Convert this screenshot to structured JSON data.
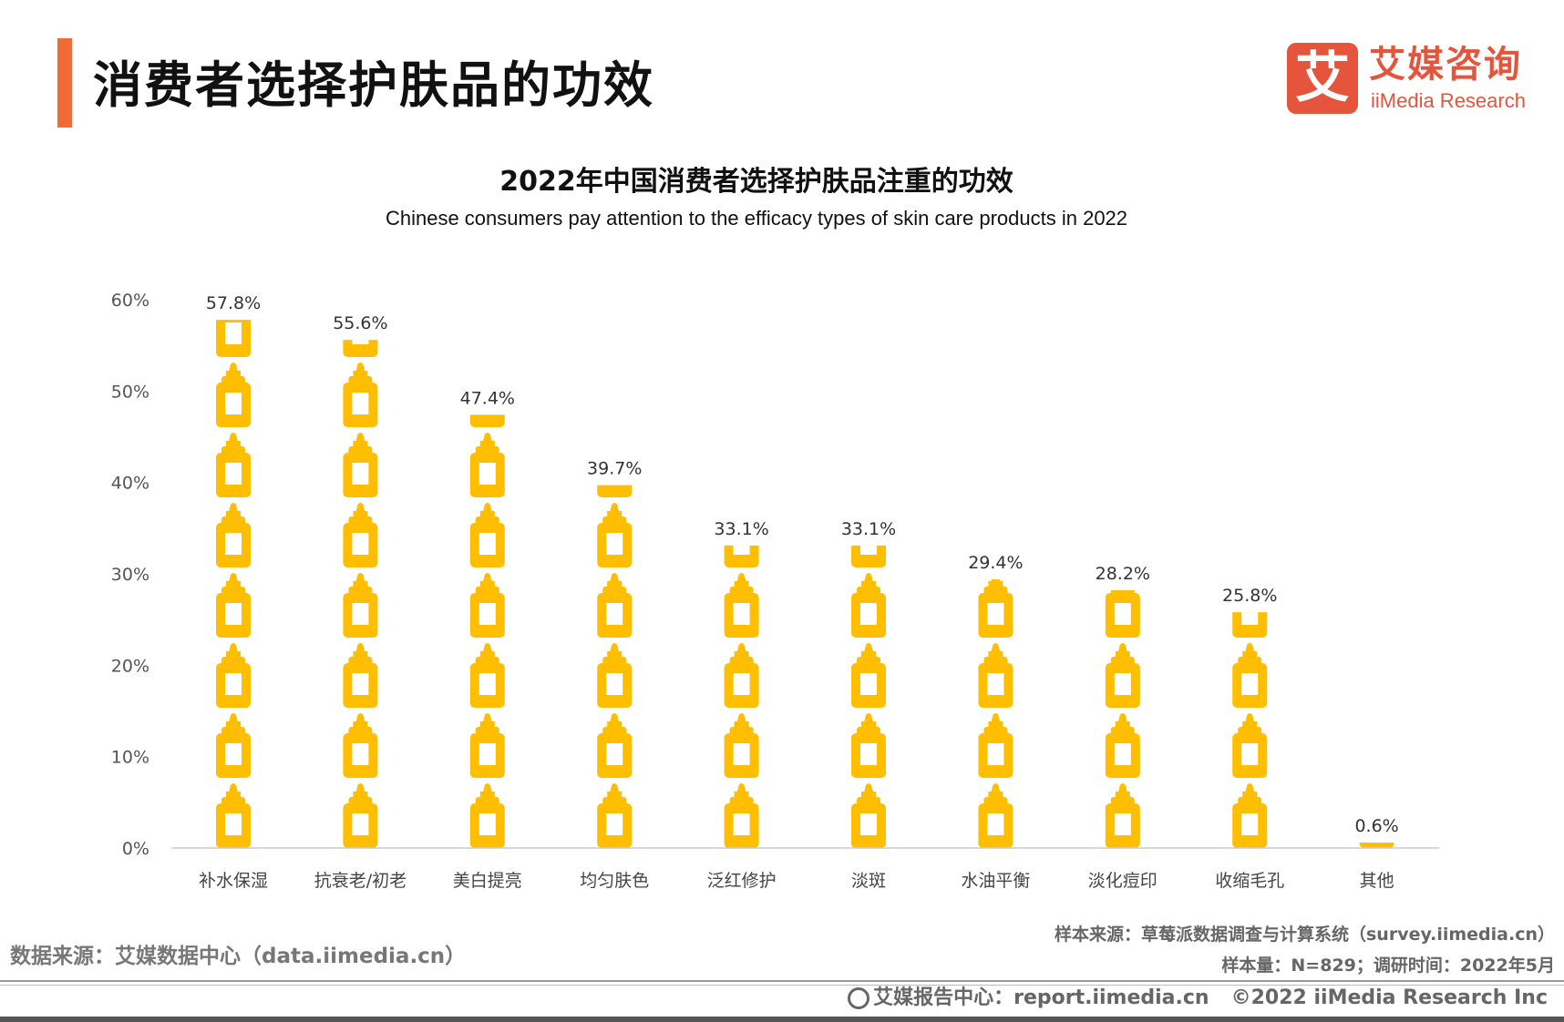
{
  "header": {
    "title": "消费者选择护肤品的功效",
    "accent_color": "#f26a36"
  },
  "logo": {
    "icon_char": "艾",
    "name_cn": "艾媒咨询",
    "name_en": "iiMedia Research",
    "color": "#e5553b"
  },
  "chart_data": {
    "type": "bar",
    "pictorial": "bottle-icon",
    "title": "2022年中国消费者选择护肤品注重的功效",
    "subtitle": "Chinese consumers pay attention to the efficacy types of skin care products in 2022",
    "categories": [
      "补水保湿",
      "抗衰老/初老",
      "美白提亮",
      "均匀肤色",
      "泛红修护",
      "淡斑",
      "水油平衡",
      "淡化痘印",
      "收缩毛孔",
      "其他"
    ],
    "values": [
      57.8,
      55.6,
      47.4,
      39.7,
      33.1,
      33.1,
      29.4,
      28.2,
      25.8,
      0.6
    ],
    "labels": [
      "57.8%",
      "55.6%",
      "47.4%",
      "39.7%",
      "33.1%",
      "33.1%",
      "29.4%",
      "28.2%",
      "25.8%",
      "0.6%"
    ],
    "ylim": [
      0,
      60
    ],
    "yticks": [
      "0%",
      "10%",
      "20%",
      "30%",
      "40%",
      "50%",
      "60%"
    ],
    "grid": false,
    "bar_color": "#ffbf00"
  },
  "footer": {
    "data_source": "数据来源：艾媒数据中心（data.iimedia.cn）",
    "sample_source": "样本来源：草莓派数据调查与计算系统（survey.iimedia.cn）",
    "sample_size": "样本量：N=829；调研时间：2022年5月",
    "report_center": "艾媒报告中心：report.iimedia.cn",
    "copyright": "©2022  iiMedia Research  Inc"
  }
}
